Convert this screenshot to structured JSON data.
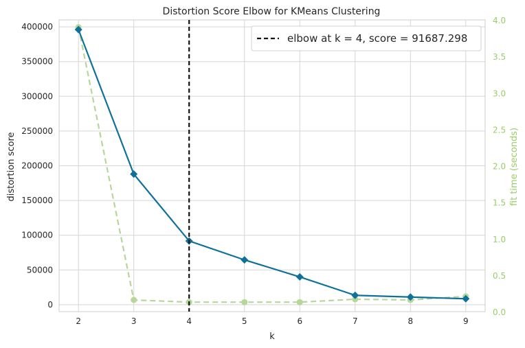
{
  "chart_data": {
    "type": "line",
    "title": "Distortion Score Elbow for KMeans Clustering",
    "xlabel": "k",
    "ylabel": "distortion score",
    "y2label": "fit time (seconds)",
    "x": [
      2,
      3,
      4,
      5,
      6,
      7,
      8,
      9
    ],
    "xlim": [
      1.65,
      9.35
    ],
    "ylim": [
      -10000,
      410000
    ],
    "y2lim": [
      0,
      4.0
    ],
    "yticks": [
      0,
      50000,
      100000,
      150000,
      200000,
      250000,
      300000,
      350000,
      400000
    ],
    "y2ticks": [
      "0.0",
      "0.5",
      "1.0",
      "1.5",
      "2.0",
      "2.5",
      "3.0",
      "3.5",
      "4.0"
    ],
    "grid": true,
    "legend_position": "top-right",
    "series": [
      {
        "axis": "left",
        "style": "solid",
        "marker": "diamond",
        "color": "#0f7199",
        "values": [
          396000,
          188000,
          91687.298,
          64500,
          40000,
          13500,
          11000,
          8500
        ]
      },
      {
        "axis": "right",
        "style": "dashed",
        "marker": "circle",
        "color": "#b6d69a",
        "values": [
          3.9,
          0.16,
          0.13,
          0.13,
          0.13,
          0.17,
          0.16,
          0.21
        ]
      }
    ],
    "elbow": {
      "k": 4,
      "score": "91687.298",
      "legend_label": "elbow at k = 4, score = 91687.298",
      "color": "#111111"
    }
  }
}
